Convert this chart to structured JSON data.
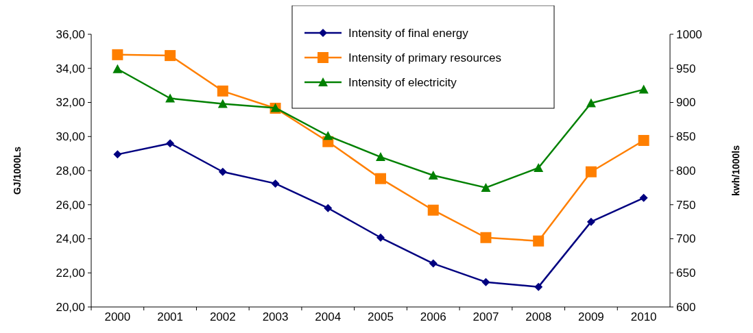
{
  "chart_data": {
    "type": "line",
    "categories": [
      "2000",
      "2001",
      "2002",
      "2003",
      "2004",
      "2005",
      "2006",
      "2007",
      "2008",
      "2009",
      "2010"
    ],
    "ylabel": "GJ/1000Ls",
    "y2label": "kwh/1000ls",
    "ylim": [
      20,
      36
    ],
    "yticks": [
      {
        "value": 20,
        "label": "20,00"
      },
      {
        "value": 22,
        "label": "22,00"
      },
      {
        "value": 24,
        "label": "24,00"
      },
      {
        "value": 26,
        "label": "26,00"
      },
      {
        "value": 28,
        "label": "28,00"
      },
      {
        "value": 30,
        "label": "30,00"
      },
      {
        "value": 32,
        "label": "32,00"
      },
      {
        "value": 34,
        "label": "34,00"
      },
      {
        "value": 36,
        "label": "36,00"
      }
    ],
    "y2lim": [
      600,
      1000
    ],
    "y2ticks": [
      600,
      650,
      700,
      750,
      800,
      850,
      900,
      950,
      1000
    ],
    "legend": "top",
    "grid": false,
    "series": [
      {
        "name": "Intensity of final energy",
        "color": "#000080",
        "marker": "diamond",
        "values": [
          28.95,
          29.6,
          27.93,
          27.24,
          25.8,
          24.07,
          22.55,
          21.46,
          21.18,
          25.0,
          26.4
        ]
      },
      {
        "name": "Intensity of primary resources",
        "color": "#ff7f00",
        "marker": "square",
        "values": [
          34.8,
          34.75,
          32.67,
          31.66,
          29.7,
          27.53,
          25.68,
          24.07,
          23.87,
          27.93,
          29.77
        ]
      },
      {
        "name": "Intensity of electricity",
        "color": "#008000",
        "marker": "triangle",
        "axis": "y2",
        "values": [
          949,
          906,
          898,
          892,
          851,
          820,
          793,
          775,
          804,
          899,
          919
        ]
      }
    ]
  }
}
